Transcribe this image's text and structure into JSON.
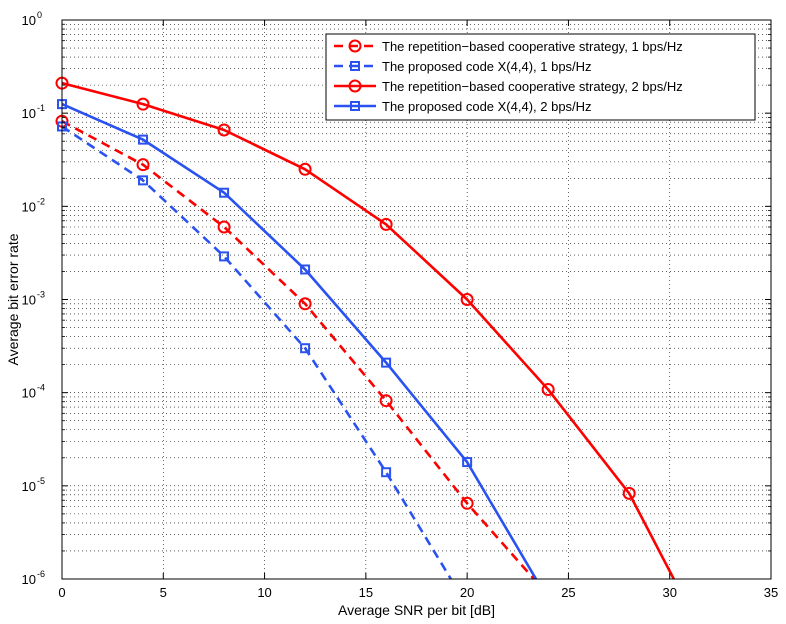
{
  "chart_data": {
    "type": "line",
    "title": "",
    "xlabel": "Average SNR per bit [dB]",
    "ylabel": "Average bit error rate",
    "xlim": [
      0,
      35
    ],
    "ylim": [
      1e-06,
      1
    ],
    "yscale": "log",
    "grid": true,
    "grid_style": "dotted",
    "legend_position": "top-right",
    "x_ticks": [
      0,
      5,
      10,
      15,
      20,
      25,
      30,
      35
    ],
    "y_tick_exponents": [
      -6,
      -5,
      -4,
      -3,
      -2,
      -1,
      0
    ],
    "series": [
      {
        "name": "The repetition−based cooperative strategy, 1 bps/Hz",
        "color": "#ff0000",
        "line": "dashed",
        "marker": "circle",
        "marker_x": [
          0,
          4,
          8,
          12,
          16,
          20
        ],
        "marker_y": [
          0.082,
          0.028,
          0.006,
          0.0009,
          8.2e-05,
          6.5e-06
        ],
        "x": [
          0,
          4,
          8,
          12,
          16,
          20,
          23.3
        ],
        "y": [
          0.082,
          0.028,
          0.006,
          0.0009,
          8.2e-05,
          6.5e-06,
          1e-06
        ]
      },
      {
        "name": "The proposed code X(4,4), 1 bps/Hz",
        "color": "#2a52f0",
        "line": "dashed",
        "marker": "square",
        "marker_x": [
          0,
          4,
          8,
          12,
          16
        ],
        "marker_y": [
          0.072,
          0.019,
          0.0029,
          0.0003,
          1.4e-05
        ],
        "x": [
          0,
          4,
          8,
          12,
          16,
          19.2
        ],
        "y": [
          0.072,
          0.019,
          0.0029,
          0.0003,
          1.4e-05,
          1e-06
        ]
      },
      {
        "name": "The repetition−based cooperative strategy, 2 bps/Hz",
        "color": "#ff0000",
        "line": "solid",
        "marker": "circle",
        "marker_x": [
          0,
          4,
          8,
          12,
          16,
          20,
          24,
          28
        ],
        "marker_y": [
          0.21,
          0.125,
          0.066,
          0.025,
          0.0064,
          0.001,
          0.000108,
          8.3e-06
        ],
        "x": [
          0,
          4,
          8,
          12,
          16,
          20,
          24,
          28,
          30.2
        ],
        "y": [
          0.21,
          0.125,
          0.066,
          0.025,
          0.0064,
          0.001,
          0.000108,
          8.3e-06,
          1e-06
        ]
      },
      {
        "name": "The proposed code X(4,4), 2 bps/Hz",
        "color": "#2a52f0",
        "line": "solid",
        "marker": "square",
        "marker_x": [
          0,
          4,
          8,
          12,
          16,
          20
        ],
        "marker_y": [
          0.125,
          0.052,
          0.014,
          0.0021,
          0.00021,
          1.8e-05
        ],
        "x": [
          0,
          4,
          8,
          12,
          16,
          20,
          23.4
        ],
        "y": [
          0.125,
          0.052,
          0.014,
          0.0021,
          0.00021,
          1.8e-05,
          1e-06
        ]
      }
    ]
  }
}
